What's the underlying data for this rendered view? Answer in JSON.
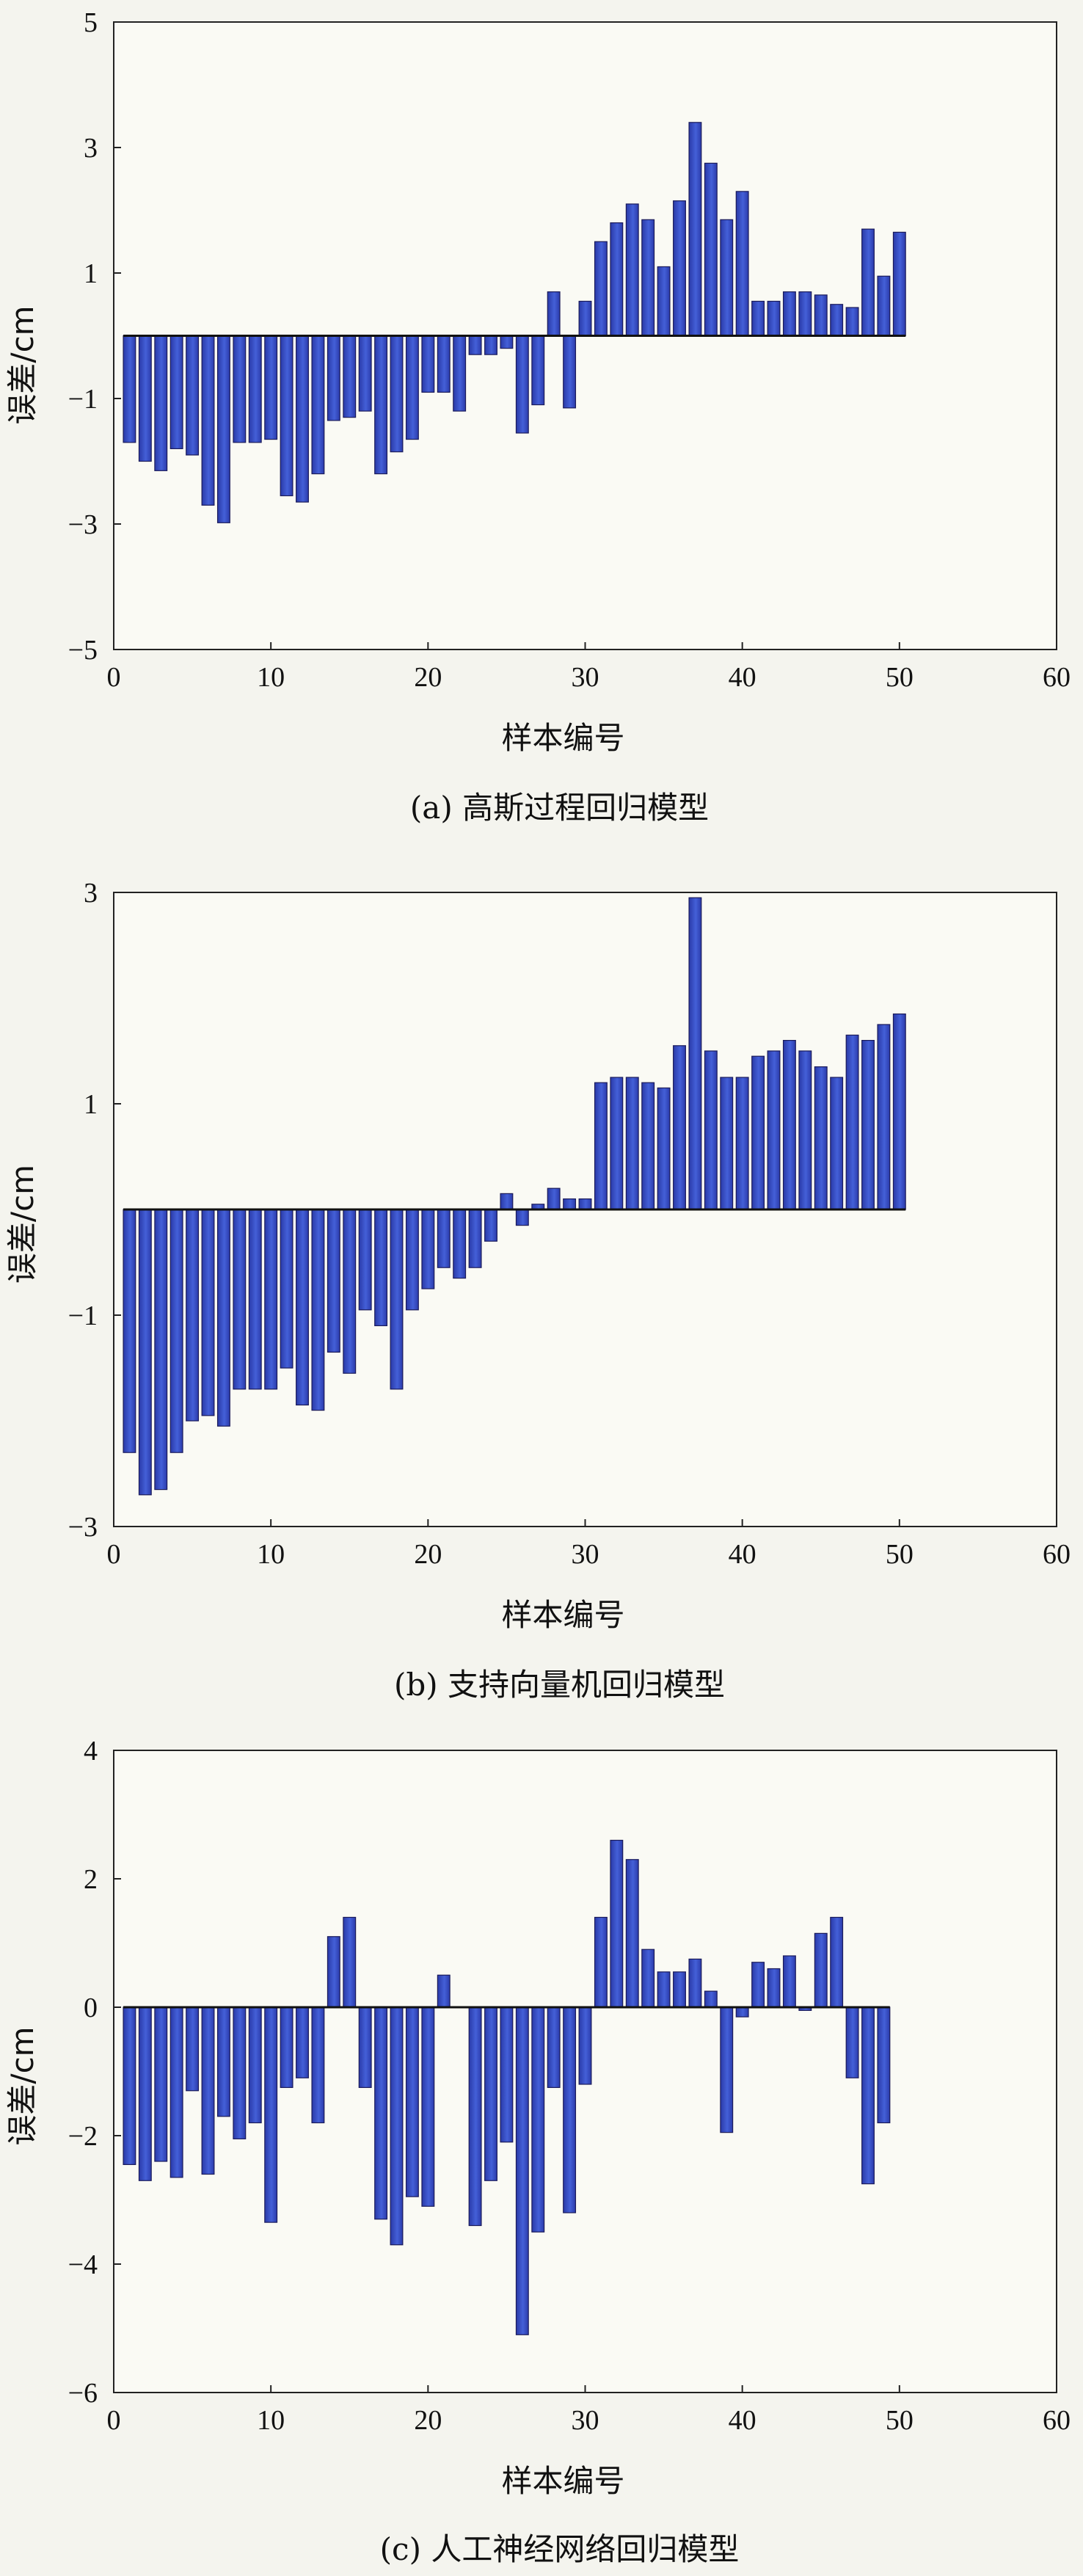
{
  "chart_data": [
    {
      "type": "bar",
      "title": "",
      "caption": "(a) 高斯过程回归模型",
      "xlabel": "样本编号",
      "ylabel": "误差/cm",
      "xlim": [
        0,
        60
      ],
      "ylim": [
        -5,
        5
      ],
      "xticks": [
        "0",
        "10",
        "20",
        "30",
        "40",
        "50",
        "60"
      ],
      "yticks": [
        "−5",
        "−3",
        "−1",
        "1",
        "3",
        "5"
      ],
      "grid": false,
      "bar_color": "#3b4fc0",
      "x": [
        1,
        2,
        3,
        4,
        5,
        6,
        7,
        8,
        9,
        10,
        11,
        12,
        13,
        14,
        15,
        16,
        17,
        18,
        19,
        20,
        21,
        22,
        23,
        24,
        25,
        26,
        27,
        28,
        29,
        30,
        31,
        32,
        33,
        34,
        35,
        36,
        37,
        38,
        39,
        40,
        41,
        42,
        43,
        44,
        45,
        46,
        47,
        48,
        49,
        50
      ],
      "values": [
        -1.7,
        -2.0,
        -2.15,
        -1.8,
        -1.9,
        -2.7,
        -2.98,
        -1.7,
        -1.7,
        -1.65,
        -2.55,
        -2.65,
        -2.2,
        -1.35,
        -1.3,
        -1.2,
        -2.2,
        -1.85,
        -1.65,
        -0.9,
        -0.9,
        -1.2,
        -0.3,
        -0.3,
        -0.2,
        -1.55,
        -1.1,
        0.7,
        -1.15,
        0.55,
        1.5,
        1.8,
        2.1,
        1.85,
        1.1,
        2.15,
        3.4,
        2.75,
        1.85,
        2.3,
        0.55,
        0.55,
        0.7,
        0.7,
        0.65,
        0.5,
        0.45,
        1.7,
        0.95,
        1.65
      ]
    },
    {
      "type": "bar",
      "title": "",
      "caption": "(b) 支持向量机回归模型",
      "xlabel": "样本编号",
      "ylabel": "误差/cm",
      "xlim": [
        0,
        60
      ],
      "ylim": [
        -3,
        3
      ],
      "xticks": [
        "0",
        "10",
        "20",
        "30",
        "40",
        "50",
        "60"
      ],
      "yticks": [
        "−3",
        "−1",
        "1",
        "3"
      ],
      "grid": false,
      "bar_color": "#3b4fc0",
      "x": [
        1,
        2,
        3,
        4,
        5,
        6,
        7,
        8,
        9,
        10,
        11,
        12,
        13,
        14,
        15,
        16,
        17,
        18,
        19,
        20,
        21,
        22,
        23,
        24,
        25,
        26,
        27,
        28,
        29,
        30,
        31,
        32,
        33,
        34,
        35,
        36,
        37,
        38,
        39,
        40,
        41,
        42,
        43,
        44,
        45,
        46,
        47,
        48,
        49,
        50
      ],
      "values": [
        -2.3,
        -2.7,
        -2.65,
        -2.3,
        -2.0,
        -1.95,
        -2.05,
        -1.7,
        -1.7,
        -1.7,
        -1.5,
        -1.85,
        -1.9,
        -1.35,
        -1.55,
        -0.95,
        -1.1,
        -1.7,
        -0.95,
        -0.75,
        -0.55,
        -0.65,
        -0.55,
        -0.3,
        0.15,
        -0.15,
        0.05,
        0.2,
        0.1,
        0.1,
        1.2,
        1.25,
        1.25,
        1.2,
        1.15,
        1.55,
        2.95,
        1.5,
        1.25,
        1.25,
        1.45,
        1.5,
        1.6,
        1.5,
        1.35,
        1.25,
        1.65,
        1.6,
        1.75,
        1.85
      ]
    },
    {
      "type": "bar",
      "title": "",
      "caption": "(c) 人工神经网络回归模型",
      "xlabel": "样本编号",
      "ylabel": "误差/cm",
      "xlim": [
        0,
        60
      ],
      "ylim": [
        -6,
        4
      ],
      "xticks": [
        "0",
        "10",
        "20",
        "30",
        "40",
        "50",
        "60"
      ],
      "yticks": [
        "−6",
        "−4",
        "−2",
        "0",
        "2",
        "4"
      ],
      "grid": false,
      "bar_color": "#3b4fc0",
      "x": [
        1,
        2,
        3,
        4,
        5,
        6,
        7,
        8,
        9,
        10,
        11,
        12,
        13,
        14,
        15,
        16,
        17,
        18,
        19,
        20,
        21,
        22,
        23,
        24,
        25,
        26,
        27,
        28,
        29,
        30,
        31,
        32,
        33,
        34,
        35,
        36,
        37,
        38,
        39,
        40,
        41,
        42,
        43,
        44,
        45,
        46,
        47,
        48,
        49
      ],
      "values": [
        -2.45,
        -2.7,
        -2.4,
        -2.65,
        -1.3,
        -2.6,
        -1.7,
        -2.05,
        -1.8,
        -3.35,
        -1.25,
        -1.1,
        -1.8,
        1.1,
        1.4,
        -1.25,
        -3.3,
        -3.7,
        -2.95,
        -3.1,
        0.5,
        0.0,
        -3.4,
        -2.7,
        -2.1,
        -5.1,
        -3.5,
        -1.25,
        -3.2,
        -1.2,
        1.4,
        2.6,
        2.3,
        0.9,
        0.55,
        0.55,
        0.75,
        0.25,
        -1.95,
        -0.15,
        0.7,
        0.6,
        0.8,
        -0.05,
        1.15,
        1.4,
        -1.1,
        -2.75,
        -1.8
      ]
    }
  ]
}
